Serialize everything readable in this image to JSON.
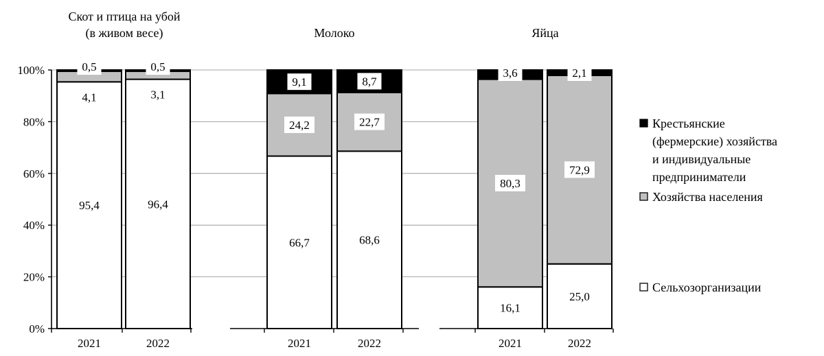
{
  "chart_data": {
    "type": "bar",
    "stacked": true,
    "groups": [
      {
        "title_lines": [
          "Скот и птица на убой",
          "(в живом весе)"
        ],
        "categories": [
          "2021",
          "2022"
        ],
        "series_values": {
          "selkhoz": [
            95.4,
            96.4
          ],
          "naselenie": [
            4.1,
            3.1
          ],
          "fermer": [
            0.5,
            0.5
          ]
        },
        "labels": {
          "selkhoz": [
            "95,4",
            "96,4"
          ],
          "naselenie": [
            "4,1",
            "3,1"
          ],
          "fermer": [
            "0,5",
            "0,5"
          ]
        }
      },
      {
        "title_lines": [
          "Молоко"
        ],
        "categories": [
          "2021",
          "2022"
        ],
        "series_values": {
          "selkhoz": [
            66.7,
            68.6
          ],
          "naselenie": [
            24.2,
            22.7
          ],
          "fermer": [
            9.1,
            8.7
          ]
        },
        "labels": {
          "selkhoz": [
            "66,7",
            "68,6"
          ],
          "naselenie": [
            "24,2",
            "22,7"
          ],
          "fermer": [
            "9,1",
            "8,7"
          ]
        }
      },
      {
        "title_lines": [
          "Яйца"
        ],
        "categories": [
          "2021",
          "2022"
        ],
        "series_values": {
          "selkhoz": [
            16.1,
            25.0
          ],
          "naselenie": [
            80.3,
            72.9
          ],
          "fermer": [
            3.6,
            2.1
          ]
        },
        "labels": {
          "selkhoz": [
            "16,1",
            "25,0"
          ],
          "naselenie": [
            "80,3",
            "72,9"
          ],
          "fermer": [
            "3,6",
            "2,1"
          ]
        }
      }
    ],
    "series": [
      {
        "key": "selkhoz",
        "name": "Сельхозорганизации",
        "color": "#ffffff"
      },
      {
        "key": "naselenie",
        "name": "Хозяйства населения",
        "color": "#c0c0c0"
      },
      {
        "key": "fermer",
        "name_lines": [
          "Крестьянские",
          "(фермерские) хозяйства",
          "и индивидуальные",
          "предприниматели"
        ],
        "color": "#000000"
      }
    ],
    "y_ticks": [
      "0%",
      "20%",
      "40%",
      "60%",
      "80%",
      "100%"
    ],
    "ylim": [
      0,
      100
    ],
    "grid": true,
    "legend_position": "right"
  }
}
